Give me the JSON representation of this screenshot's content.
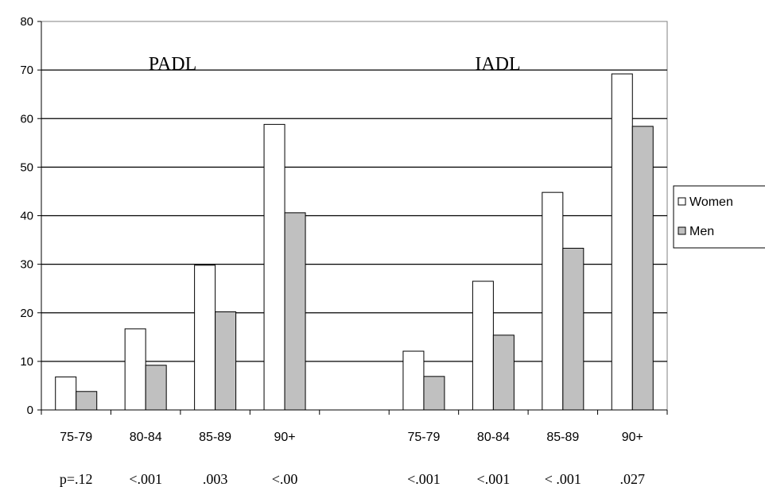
{
  "chart_data": {
    "type": "bar",
    "categories": [
      "75-79",
      "80-84",
      "85-89",
      "90+",
      "",
      "75-79",
      "80-84",
      "85-89",
      "90+"
    ],
    "p_values": [
      "p=.12",
      "<.001",
      ".003",
      "<.00",
      "",
      "<.001",
      "<.001",
      "< .001",
      ".027"
    ],
    "series": [
      {
        "name": "Women",
        "color": "#ffffff",
        "values": [
          6.8,
          16.7,
          29.8,
          58.8,
          null,
          12.1,
          26.5,
          44.8,
          69.2
        ]
      },
      {
        "name": "Men",
        "color": "#c0c0c0",
        "values": [
          3.8,
          9.2,
          20.2,
          40.6,
          null,
          6.9,
          15.4,
          33.3,
          58.4
        ]
      }
    ],
    "group_labels": [
      "PADL",
      "IADL"
    ],
    "ylim": [
      0,
      80
    ],
    "yticks": [
      0,
      10,
      20,
      30,
      40,
      50,
      60,
      70,
      80
    ],
    "grid": true,
    "legend_position": "right"
  }
}
